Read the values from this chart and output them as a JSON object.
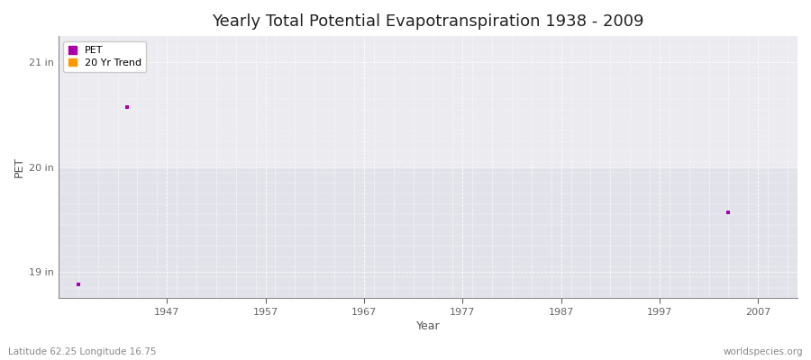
{
  "title": "Yearly Total Potential Evapotranspiration 1938 - 2009",
  "xlabel": "Year",
  "ylabel": "PET",
  "fig_bg_color": "#ffffff",
  "plot_bg_color_upper": "#f0f0f5",
  "plot_bg_color_lower": "#e8e8ee",
  "grid_color": "#ffffff",
  "ylim": [
    18.75,
    21.25
  ],
  "xlim": [
    1936,
    2011
  ],
  "yticks": [
    19,
    20,
    21
  ],
  "ytick_labels": [
    "19 in",
    "20 in",
    "21 in"
  ],
  "xticks": [
    1947,
    1957,
    1967,
    1977,
    1987,
    1997,
    2007
  ],
  "pet_data": [
    {
      "year": 1938,
      "value": 18.88
    },
    {
      "year": 1943,
      "value": 20.57
    },
    {
      "year": 2004,
      "value": 19.57
    }
  ],
  "pet_color": "#aa00aa",
  "trend_color": "#ff9900",
  "marker_size": 3,
  "legend_entries": [
    "PET",
    "20 Yr Trend"
  ],
  "footer_left": "Latitude 62.25 Longitude 16.75",
  "footer_right": "worldspecies.org",
  "title_fontsize": 13,
  "axis_label_fontsize": 9,
  "tick_fontsize": 8,
  "footer_fontsize": 7.5
}
